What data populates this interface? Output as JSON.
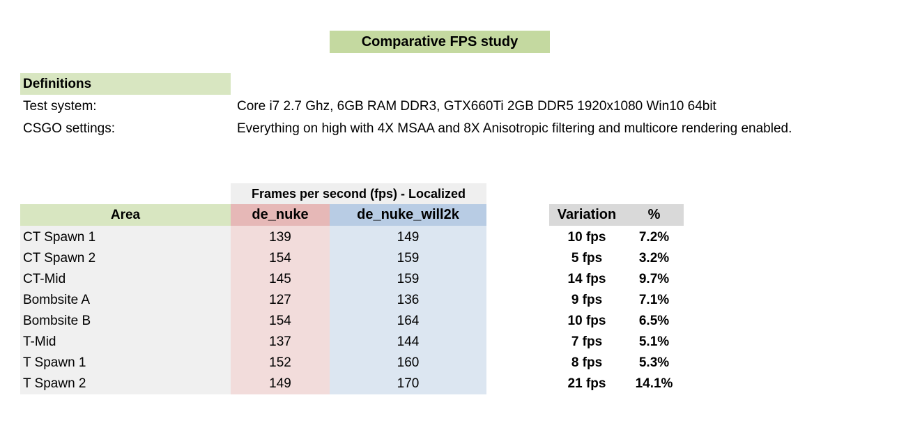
{
  "title": "Comparative FPS study",
  "definitions": {
    "heading": "Definitions",
    "items": [
      {
        "label": "Test system:",
        "value": "Core i7 2.7 Ghz, 6GB RAM DDR3, GTX660Ti 2GB DDR5 1920x1080 Win10 64bit"
      },
      {
        "label": "CSGO settings:",
        "value": "Everything on high with 4X MSAA and 8X Anisotropic filtering and multicore rendering enabled."
      }
    ]
  },
  "table": {
    "group_header": "Frames per second (fps) - Localized",
    "headers": {
      "area": "Area",
      "nuke": "de_nuke",
      "will": "de_nuke_will2k"
    },
    "rows": [
      {
        "area": "CT Spawn 1",
        "nuke": "139",
        "will": "149"
      },
      {
        "area": "CT Spawn 2",
        "nuke": "154",
        "will": "159"
      },
      {
        "area": "CT-Mid",
        "nuke": "145",
        "will": "159"
      },
      {
        "area": "Bombsite A",
        "nuke": "127",
        "will": "136"
      },
      {
        "area": "Bombsite B",
        "nuke": "154",
        "will": "164"
      },
      {
        "area": "T-Mid",
        "nuke": "137",
        "will": "144"
      },
      {
        "area": "T Spawn 1",
        "nuke": "152",
        "will": "160"
      },
      {
        "area": "T Spawn 2",
        "nuke": "149",
        "will": "170"
      }
    ]
  },
  "variation": {
    "headers": {
      "variation": "Variation",
      "percent": "%"
    },
    "rows": [
      {
        "fps": "10 fps",
        "pct": "7.2%"
      },
      {
        "fps": "5 fps",
        "pct": "3.2%"
      },
      {
        "fps": "14 fps",
        "pct": "9.7%"
      },
      {
        "fps": "9 fps",
        "pct": "7.1%"
      },
      {
        "fps": "10 fps",
        "pct": "6.5%"
      },
      {
        "fps": "7 fps",
        "pct": "5.1%"
      },
      {
        "fps": "8 fps",
        "pct": "5.3%"
      },
      {
        "fps": "21 fps",
        "pct": "14.1%"
      }
    ]
  }
}
